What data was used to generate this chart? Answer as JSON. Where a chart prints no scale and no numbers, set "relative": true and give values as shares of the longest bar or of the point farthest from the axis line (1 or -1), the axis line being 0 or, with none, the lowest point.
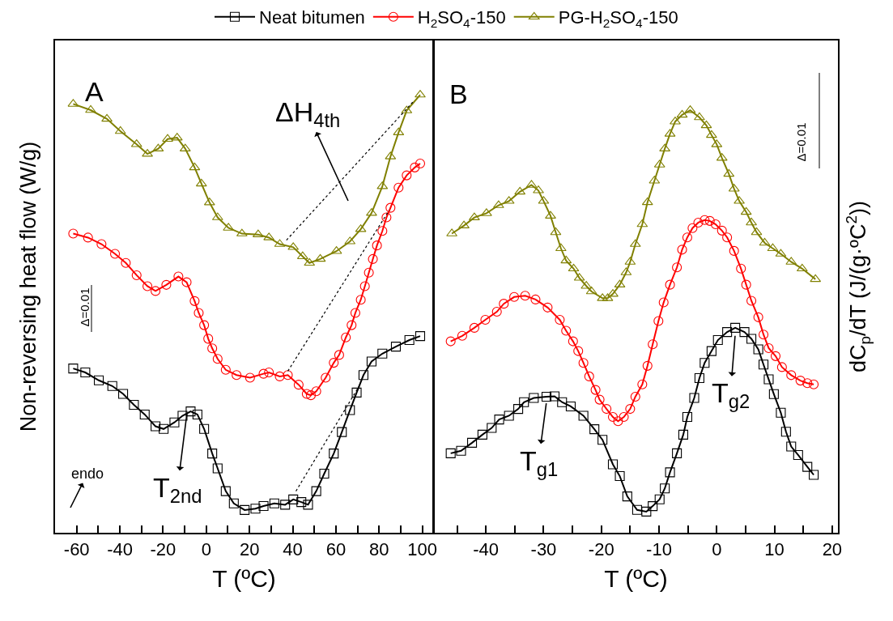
{
  "chart_data": [
    {
      "type": "line",
      "relative": true,
      "xlabel": "T (ºC)",
      "ylabel": "Non-reversing heat flow (W/g)",
      "xlim": [
        -70,
        105
      ],
      "xticks": [
        -60,
        {
          "value": -50,
          "label": null
        },
        -40,
        {
          "value": -30,
          "label": null
        },
        -20,
        {
          "value": -10,
          "label": null
        },
        0,
        {
          "value": 10,
          "label": null
        },
        20,
        {
          "value": 30,
          "label": null
        },
        40,
        {
          "value": 50,
          "label": null
        },
        60,
        {
          "value": 70,
          "label": null
        },
        80,
        {
          "value": 90,
          "label": null
        },
        100
      ],
      "tick_labels": "x",
      "grid": false,
      "legend": "top",
      "series": [
        {
          "name": "Neat bitumen",
          "color": "#000000",
          "marker": "square",
          "x": [
            -61.6,
            -56,
            -49.75,
            -43.5,
            -38.5,
            -33.5,
            -28.5,
            -23.5,
            -19.75,
            -14.75,
            -11,
            -7.25,
            -4.1,
            -1,
            2.75,
            5.25,
            9,
            12.75,
            17.75,
            22.75,
            26.5,
            31.5,
            36.5,
            40.25,
            44,
            47.1,
            50.9,
            54.6,
            59,
            62.75,
            66.5,
            69.6,
            72.75,
            76.5,
            81.5,
            87.75,
            94,
            99
          ],
          "values": [
            0.375,
            0.366,
            0.348,
            0.335,
            0.317,
            0.292,
            0.27,
            0.243,
            0.237,
            0.252,
            0.267,
            0.277,
            0.27,
            0.237,
            0.181,
            0.147,
            0.095,
            0.067,
            0.052,
            0.055,
            0.061,
            0.067,
            0.064,
            0.076,
            0.07,
            0.064,
            0.095,
            0.135,
            0.181,
            0.23,
            0.28,
            0.32,
            0.36,
            0.391,
            0.409,
            0.425,
            0.44,
            0.449
          ]
        },
        {
          "name": "H$_{2}$SO$_{4}$-150",
          "color": "#ff0000",
          "marker": "circle",
          "x": [
            -61.6,
            -54.75,
            -48.5,
            -42.25,
            -37.25,
            -32.25,
            -27.25,
            -23.5,
            -18.5,
            -12.9,
            -9.1,
            -5.4,
            -3.5,
            -1,
            0.9,
            2.75,
            5.25,
            9,
            14,
            20.25,
            26.5,
            29,
            34,
            37.75,
            42.75,
            46.5,
            48.4,
            50.9,
            55.25,
            59,
            61.5,
            64.6,
            67.25,
            69,
            71.5,
            73.4,
            75.25,
            77.1,
            79,
            81.5,
            83.4,
            85.25,
            89,
            92.75,
            96.5,
            99
          ],
          "values": [
            0.683,
            0.674,
            0.659,
            0.637,
            0.616,
            0.588,
            0.563,
            0.552,
            0.566,
            0.585,
            0.572,
            0.529,
            0.502,
            0.474,
            0.443,
            0.421,
            0.397,
            0.372,
            0.36,
            0.354,
            0.363,
            0.366,
            0.357,
            0.36,
            0.338,
            0.317,
            0.314,
            0.323,
            0.354,
            0.388,
            0.406,
            0.446,
            0.474,
            0.502,
            0.532,
            0.563,
            0.594,
            0.625,
            0.656,
            0.689,
            0.72,
            0.742,
            0.788,
            0.816,
            0.834,
            0.843
          ]
        },
        {
          "name": "PG-H$_{2}$SO$_{4}$-150",
          "color": "#808000",
          "marker": "triangle",
          "x": [
            -61.6,
            -53.5,
            -46,
            -39.75,
            -32.25,
            -27.25,
            -22.25,
            -17.9,
            -13.5,
            -9.75,
            -5.4,
            -2.25,
            1.5,
            5.25,
            10.25,
            16.5,
            24,
            29,
            34,
            40.25,
            44.6,
            47.75,
            52.75,
            60.25,
            66.5,
            71.5,
            76.5,
            81.5,
            85.25,
            89,
            92.75,
            99
          ],
          "values": [
            0.979,
            0.965,
            0.945,
            0.917,
            0.887,
            0.865,
            0.877,
            0.899,
            0.902,
            0.877,
            0.834,
            0.797,
            0.754,
            0.72,
            0.696,
            0.683,
            0.681,
            0.674,
            0.659,
            0.652,
            0.631,
            0.616,
            0.625,
            0.643,
            0.665,
            0.693,
            0.73,
            0.791,
            0.859,
            0.914,
            0.964,
            1
          ]
        },
        {
          "type": "line",
          "color": "#000000",
          "marker": "none",
          "line_style": "dotted",
          "x": [
            37.1,
            95.9
          ],
          "values": [
            0.668,
            0.985
          ]
        },
        {
          "type": "line",
          "color": "#000000",
          "marker": "none",
          "line_style": "dotted",
          "x": [
            37.75,
            84.6
          ],
          "values": [
            0.369,
            0.736
          ]
        },
        {
          "type": "line",
          "color": "#000000",
          "marker": "none",
          "line_style": "dotted",
          "x": [
            41.5,
            71.5
          ],
          "values": [
            0.095,
            0.341
          ]
        }
      ],
      "annotations": [
        "A",
        "ΔH$_{4th}$",
        "Δ=0.01",
        "endo",
        {
          "text": "T$_{2nd}$",
          "x": -8.9,
          "y": 0.275
        }
      ]
    },
    {
      "type": "line",
      "relative": true,
      "xlabel": "T (ºC)",
      "ylabel": "dC$_{p}$/dT (J/(g·ºC$^{2}$))",
      "xlim": [
        -49,
        21
      ],
      "xticks": [
        {
          "value": -45,
          "label": null
        },
        -40,
        {
          "value": -35,
          "label": null
        },
        -30,
        {
          "value": -25,
          "label": null
        },
        -20,
        {
          "value": -15,
          "label": null
        },
        -10,
        {
          "value": -5,
          "label": null
        },
        0,
        {
          "value": 5,
          "label": null
        },
        10,
        {
          "value": 15,
          "label": null
        },
        20
      ],
      "tick_labels": "x",
      "grid": false,
      "series": [
        {
          "name": "Neat bitumen",
          "color": "#000000",
          "marker": "square",
          "x": [
            -46.1,
            -44.3,
            -42.4,
            -40.6,
            -39.0,
            -37.7,
            -36.0,
            -34.4,
            -33.4,
            -31.7,
            -29.5,
            -28.1,
            -26.8,
            -25.3,
            -23.1,
            -21.2,
            -19.8,
            -18.0,
            -16.8,
            -15.5,
            -13.8,
            -12.2,
            -11.1,
            -9.9,
            -9.0,
            -8.1,
            -6.9,
            -5.8,
            -5.1,
            -3.9,
            -3.0,
            -2.1,
            -0.9,
            0.2,
            1.8,
            3.2,
            4.8,
            6.0,
            7.2,
            8.1,
            9.0,
            9.9,
            11.1,
            12.0,
            12.9,
            14.1,
            15.7,
            16.8
          ],
          "values": [
            0.188,
            0.194,
            0.213,
            0.232,
            0.248,
            0.268,
            0.277,
            0.293,
            0.309,
            0.319,
            0.322,
            0.323,
            0.309,
            0.299,
            0.277,
            0.245,
            0.22,
            0.162,
            0.134,
            0.086,
            0.054,
            0.05,
            0.063,
            0.079,
            0.105,
            0.143,
            0.188,
            0.232,
            0.274,
            0.319,
            0.366,
            0.402,
            0.43,
            0.456,
            0.475,
            0.485,
            0.475,
            0.459,
            0.434,
            0.398,
            0.363,
            0.328,
            0.284,
            0.239,
            0.204,
            0.184,
            0.156,
            0.137
          ]
        },
        {
          "name": "H$_{2}$SO$_{4}$-150",
          "color": "#ff0000",
          "marker": "circle",
          "x": [
            -46.1,
            -44.1,
            -42.0,
            -40.1,
            -38.1,
            -36.9,
            -35.1,
            -33.2,
            -31.4,
            -29.3,
            -27.2,
            -26.1,
            -24.9,
            -24.0,
            -23.1,
            -22.1,
            -21.0,
            -20.3,
            -19.1,
            -18.0,
            -17.1,
            -16.1,
            -15.0,
            -14.1,
            -12.9,
            -12.0,
            -11.1,
            -10.1,
            -9.2,
            -8.1,
            -6.9,
            -6.0,
            -5.1,
            -4.2,
            -3.2,
            -2.1,
            -1.2,
            -0.2,
            0.9,
            1.8,
            3.0,
            4.2,
            5.1,
            6.0,
            7.2,
            8.1,
            9.0,
            10.2,
            11.3,
            12.9,
            14.5,
            15.7,
            16.8
          ],
          "values": [
            0.453,
            0.466,
            0.485,
            0.504,
            0.523,
            0.542,
            0.558,
            0.561,
            0.552,
            0.533,
            0.504,
            0.478,
            0.453,
            0.43,
            0.402,
            0.37,
            0.338,
            0.315,
            0.293,
            0.274,
            0.264,
            0.274,
            0.293,
            0.322,
            0.351,
            0.395,
            0.446,
            0.501,
            0.545,
            0.587,
            0.628,
            0.67,
            0.699,
            0.721,
            0.734,
            0.74,
            0.738,
            0.73,
            0.715,
            0.699,
            0.667,
            0.625,
            0.587,
            0.549,
            0.51,
            0.469,
            0.437,
            0.418,
            0.392,
            0.373,
            0.36,
            0.354,
            0.351
          ]
        },
        {
          "name": "PG-H$_{2}$SO$_{4}$-150",
          "color": "#808000",
          "marker": "triangle",
          "x": [
            -45.9,
            -43.8,
            -42.0,
            -39.9,
            -37.8,
            -36.0,
            -34.1,
            -32.1,
            -30.9,
            -30.0,
            -28.8,
            -27.9,
            -27.0,
            -26.1,
            -24.8,
            -23.8,
            -22.6,
            -21.7,
            -19.8,
            -18.9,
            -18.0,
            -16.8,
            -15.7,
            -15.0,
            -14.1,
            -12.9,
            -12.0,
            -10.8,
            -9.9,
            -9.0,
            -8.1,
            -7.2,
            -6.0,
            -4.6,
            -3.0,
            -1.8,
            -0.9,
            0,
            0.9,
            2.1,
            3.0,
            3.9,
            5.1,
            6.0,
            6.9,
            8.3,
            9.7,
            11.1,
            12.9,
            14.8,
            17.1
          ],
          "values": [
            0.708,
            0.727,
            0.746,
            0.756,
            0.775,
            0.785,
            0.807,
            0.823,
            0.81,
            0.785,
            0.75,
            0.711,
            0.673,
            0.644,
            0.625,
            0.603,
            0.584,
            0.571,
            0.555,
            0.555,
            0.565,
            0.587,
            0.616,
            0.641,
            0.683,
            0.73,
            0.782,
            0.833,
            0.871,
            0.909,
            0.944,
            0.973,
            0.989,
            1,
            0.983,
            0.964,
            0.941,
            0.919,
            0.887,
            0.849,
            0.814,
            0.785,
            0.759,
            0.734,
            0.711,
            0.686,
            0.673,
            0.66,
            0.641,
            0.625,
            0.6
          ]
        }
      ],
      "annotations": [
        "B",
        "Δ=0.01",
        {
          "text": "T$_{g1}$",
          "x": -29.5,
          "y": 0.31
        },
        {
          "text": "T$_{g2}$",
          "x": 3.2,
          "y": 0.47
        }
      ]
    }
  ]
}
